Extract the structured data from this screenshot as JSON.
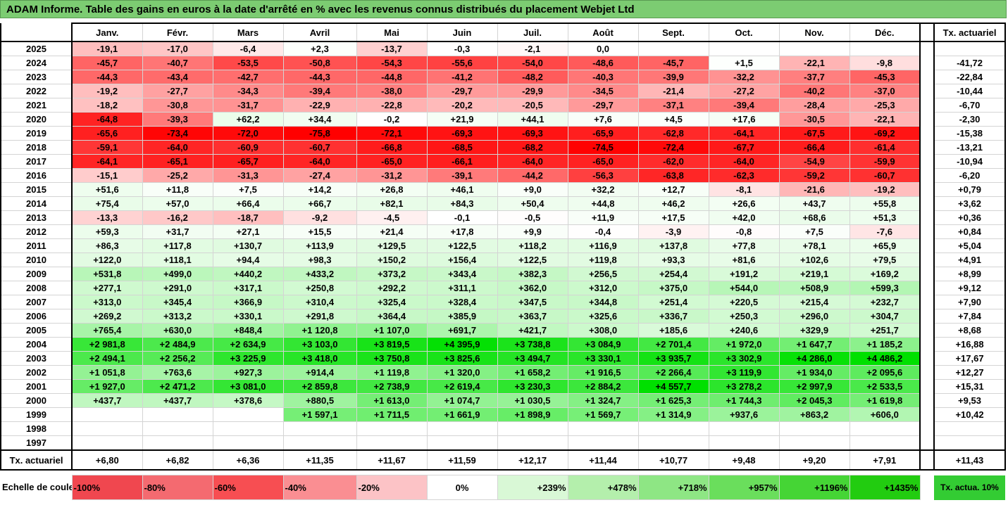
{
  "title": "ADAM Informe. Table des gains en euros à la date d'arrêté en % avec les revenus connus distribués du placement Webjet Ltd",
  "months": [
    "Janv.",
    "Févr.",
    "Mars",
    "Avril",
    "Mai",
    "Juin",
    "Juil.",
    "Août",
    "Sept.",
    "Oct.",
    "Nov.",
    "Déc."
  ],
  "tx_header": "Tx. actuariel",
  "rows": [
    {
      "year": "2025",
      "values": [
        "-19,1",
        "-17,0",
        "-6,4",
        "+2,3",
        "-13,7",
        "-0,3",
        "-2,1",
        "0,0",
        "",
        "",
        "",
        ""
      ],
      "tx": ""
    },
    {
      "year": "2024",
      "values": [
        "-45,7",
        "-40,7",
        "-53,5",
        "-50,8",
        "-54,3",
        "-55,6",
        "-54,0",
        "-48,6",
        "-45,7",
        "+1,5",
        "-22,1",
        "-9,8"
      ],
      "tx": "-41,72"
    },
    {
      "year": "2023",
      "values": [
        "-44,3",
        "-43,4",
        "-42,7",
        "-44,3",
        "-44,8",
        "-41,2",
        "-48,2",
        "-40,3",
        "-39,9",
        "-32,2",
        "-37,7",
        "-45,3"
      ],
      "tx": "-22,84"
    },
    {
      "year": "2022",
      "values": [
        "-19,2",
        "-27,7",
        "-34,3",
        "-39,4",
        "-38,0",
        "-29,7",
        "-29,9",
        "-34,5",
        "-21,4",
        "-27,2",
        "-40,2",
        "-37,0"
      ],
      "tx": "-10,44"
    },
    {
      "year": "2021",
      "values": [
        "-18,2",
        "-30,8",
        "-31,7",
        "-22,9",
        "-22,8",
        "-20,2",
        "-20,5",
        "-29,7",
        "-37,1",
        "-39,4",
        "-28,4",
        "-25,3"
      ],
      "tx": "-6,70"
    },
    {
      "year": "2020",
      "values": [
        "-64,8",
        "-39,3",
        "+62,2",
        "+34,4",
        "-0,2",
        "+21,9",
        "+44,1",
        "+7,6",
        "+4,5",
        "+17,6",
        "-30,5",
        "-22,1"
      ],
      "tx": "-2,30"
    },
    {
      "year": "2019",
      "values": [
        "-65,6",
        "-73,4",
        "-72,0",
        "-75,8",
        "-72,1",
        "-69,3",
        "-69,3",
        "-65,9",
        "-62,8",
        "-64,1",
        "-67,5",
        "-69,2"
      ],
      "tx": "-15,38"
    },
    {
      "year": "2018",
      "values": [
        "-59,1",
        "-64,0",
        "-60,9",
        "-60,7",
        "-66,8",
        "-68,5",
        "-68,2",
        "-74,5",
        "-72,4",
        "-67,7",
        "-66,4",
        "-61,4"
      ],
      "tx": "-13,21"
    },
    {
      "year": "2017",
      "values": [
        "-64,1",
        "-65,1",
        "-65,7",
        "-64,0",
        "-65,0",
        "-66,1",
        "-64,0",
        "-65,0",
        "-62,0",
        "-64,0",
        "-54,9",
        "-59,9"
      ],
      "tx": "-10,94"
    },
    {
      "year": "2016",
      "values": [
        "-15,1",
        "-25,2",
        "-31,3",
        "-27,4",
        "-31,2",
        "-39,1",
        "-44,2",
        "-56,3",
        "-63,8",
        "-62,3",
        "-59,2",
        "-60,7"
      ],
      "tx": "-6,20"
    },
    {
      "year": "2015",
      "values": [
        "+51,6",
        "+11,8",
        "+7,5",
        "+14,2",
        "+26,8",
        "+46,1",
        "+9,0",
        "+32,2",
        "+12,7",
        "-8,1",
        "-21,6",
        "-19,2"
      ],
      "tx": "+0,79"
    },
    {
      "year": "2014",
      "values": [
        "+75,4",
        "+57,0",
        "+66,4",
        "+66,7",
        "+82,1",
        "+84,3",
        "+50,4",
        "+44,8",
        "+46,2",
        "+26,6",
        "+43,7",
        "+55,8"
      ],
      "tx": "+3,62"
    },
    {
      "year": "2013",
      "values": [
        "-13,3",
        "-16,2",
        "-18,7",
        "-9,2",
        "-4,5",
        "-0,1",
        "-0,5",
        "+11,9",
        "+17,5",
        "+42,0",
        "+68,6",
        "+51,3"
      ],
      "tx": "+0,36"
    },
    {
      "year": "2012",
      "values": [
        "+59,3",
        "+31,7",
        "+27,1",
        "+15,5",
        "+21,4",
        "+17,8",
        "+9,9",
        "-0,4",
        "-3,9",
        "-0,8",
        "+7,5",
        "-7,6"
      ],
      "tx": "+0,84"
    },
    {
      "year": "2011",
      "values": [
        "+86,3",
        "+117,8",
        "+130,7",
        "+113,9",
        "+129,5",
        "+122,5",
        "+118,2",
        "+116,9",
        "+137,8",
        "+77,8",
        "+78,1",
        "+65,9"
      ],
      "tx": "+5,04"
    },
    {
      "year": "2010",
      "values": [
        "+122,0",
        "+118,1",
        "+94,4",
        "+98,3",
        "+150,2",
        "+156,4",
        "+122,5",
        "+119,8",
        "+93,3",
        "+81,6",
        "+102,6",
        "+79,5"
      ],
      "tx": "+4,91"
    },
    {
      "year": "2009",
      "values": [
        "+531,8",
        "+499,0",
        "+440,2",
        "+433,2",
        "+373,2",
        "+343,4",
        "+382,3",
        "+256,5",
        "+254,4",
        "+191,2",
        "+219,1",
        "+169,2"
      ],
      "tx": "+8,99"
    },
    {
      "year": "2008",
      "values": [
        "+277,1",
        "+291,0",
        "+317,1",
        "+250,8",
        "+292,2",
        "+311,1",
        "+362,0",
        "+312,0",
        "+375,0",
        "+544,0",
        "+508,9",
        "+599,3"
      ],
      "tx": "+9,12"
    },
    {
      "year": "2007",
      "values": [
        "+313,0",
        "+345,4",
        "+366,9",
        "+310,4",
        "+325,4",
        "+328,4",
        "+347,5",
        "+344,8",
        "+251,4",
        "+220,5",
        "+215,4",
        "+232,7"
      ],
      "tx": "+7,90"
    },
    {
      "year": "2006",
      "values": [
        "+269,2",
        "+313,2",
        "+330,1",
        "+291,8",
        "+364,4",
        "+385,9",
        "+363,7",
        "+325,6",
        "+336,7",
        "+250,3",
        "+296,0",
        "+304,7"
      ],
      "tx": "+7,84"
    },
    {
      "year": "2005",
      "values": [
        "+765,4",
        "+630,0",
        "+848,4",
        "+1 120,8",
        "+1 107,0",
        "+691,7",
        "+421,7",
        "+308,0",
        "+185,6",
        "+240,6",
        "+329,9",
        "+251,7"
      ],
      "tx": "+8,68"
    },
    {
      "year": "2004",
      "values": [
        "+2 981,8",
        "+2 484,9",
        "+2 634,9",
        "+3 103,0",
        "+3 819,5",
        "+4 395,9",
        "+3 738,8",
        "+3 084,9",
        "+2 701,4",
        "+1 972,0",
        "+1 647,7",
        "+1 185,2"
      ],
      "tx": "+16,88"
    },
    {
      "year": "2003",
      "values": [
        "+2 494,1",
        "+2 256,2",
        "+3 225,9",
        "+3 418,0",
        "+3 750,8",
        "+3 825,6",
        "+3 494,7",
        "+3 330,1",
        "+3 935,7",
        "+3 302,9",
        "+4 286,0",
        "+4 486,2"
      ],
      "tx": "+17,67"
    },
    {
      "year": "2002",
      "values": [
        "+1 051,8",
        "+763,6",
        "+927,3",
        "+914,4",
        "+1 119,8",
        "+1 320,0",
        "+1 658,2",
        "+1 916,5",
        "+2 266,4",
        "+3 119,9",
        "+1 934,0",
        "+2 095,6"
      ],
      "tx": "+12,27"
    },
    {
      "year": "2001",
      "values": [
        "+1 927,0",
        "+2 471,2",
        "+3 081,0",
        "+2 859,8",
        "+2 738,9",
        "+2 619,4",
        "+3 230,3",
        "+2 884,2",
        "+4 557,7",
        "+3 278,2",
        "+2 997,9",
        "+2 533,5"
      ],
      "tx": "+15,31"
    },
    {
      "year": "2000",
      "values": [
        "+437,7",
        "+437,7",
        "+378,6",
        "+880,5",
        "+1 613,0",
        "+1 074,7",
        "+1 030,5",
        "+1 324,7",
        "+1 625,3",
        "+1 744,3",
        "+2 045,3",
        "+1 619,8"
      ],
      "tx": "+9,53"
    },
    {
      "year": "1999",
      "values": [
        "",
        "",
        "",
        "+1 597,1",
        "+1 711,5",
        "+1 661,9",
        "+1 898,9",
        "+1 569,7",
        "+1 314,9",
        "+937,6",
        "+863,2",
        "+606,0"
      ],
      "tx": "+10,42"
    },
    {
      "year": "1998",
      "values": [
        "",
        "",
        "",
        "",
        "",
        "",
        "",
        "",
        "",
        "",
        "",
        ""
      ],
      "tx": ""
    },
    {
      "year": "1997",
      "values": [
        "",
        "",
        "",
        "",
        "",
        "",
        "",
        "",
        "",
        "",
        "",
        ""
      ],
      "tx": ""
    }
  ],
  "totals": {
    "label": "Tx. actuariel",
    "values": [
      "+6,80",
      "+6,82",
      "+6,36",
      "+11,35",
      "+11,67",
      "+11,59",
      "+12,17",
      "+11,44",
      "+10,77",
      "+9,48",
      "+9,20",
      "+7,91"
    ],
    "tx": "+11,43"
  },
  "scale": {
    "label": "Echelle de couleur",
    "items": [
      "-100%",
      "-80%",
      "-60%",
      "-40%",
      "-20%",
      "0%",
      "+239%",
      "+478%",
      "+718%",
      "+957%",
      "+1196%",
      "+1435%"
    ],
    "colors": [
      "#f0474f",
      "#f46a70",
      "#f74e52",
      "#fa8e92",
      "#fcc3c6",
      "#ffffff",
      "#d9f8d6",
      "#b4efac",
      "#8ee684",
      "#6ade5c",
      "#45d535",
      "#22cc10"
    ],
    "tx_label": "Tx. actua. 10%"
  },
  "colors": {
    "neg_max": "#ff0000",
    "pos_max": "#00e000",
    "title_bg": "#7ccc72",
    "tx_scale_bg": "#33cc33"
  }
}
